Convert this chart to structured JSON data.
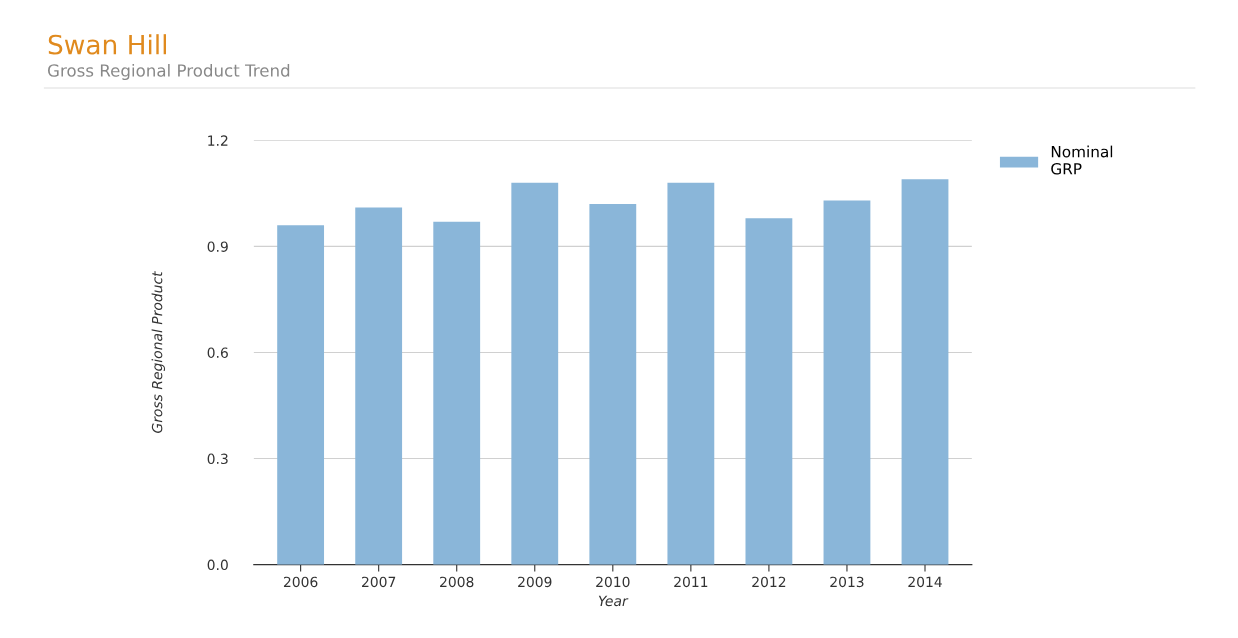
{
  "chart_data": {
    "type": "bar",
    "title": "Swan Hill",
    "subtitle": "Gross Regional Product Trend",
    "xlabel": "Year",
    "ylabel": "Gross Regional Product",
    "categories": [
      "2006",
      "2007",
      "2008",
      "2009",
      "2010",
      "2011",
      "2012",
      "2013",
      "2014"
    ],
    "series": [
      {
        "name": "Nominal\nGRP",
        "color": "#8ab6d9",
        "values": [
          0.96,
          1.01,
          0.97,
          1.08,
          1.02,
          1.08,
          0.98,
          1.03,
          1.09
        ]
      }
    ],
    "ylim": [
      0,
      1.2
    ],
    "yticks": [
      {
        "value": 0,
        "label": "0.0"
      },
      {
        "value": 0.3,
        "label": "0.3"
      },
      {
        "value": 0.6,
        "label": "0.6"
      },
      {
        "value": 0.9,
        "label": "0.9"
      },
      {
        "value": 1.2,
        "label": "1.2"
      }
    ],
    "grid": "y",
    "legend": "top right"
  }
}
